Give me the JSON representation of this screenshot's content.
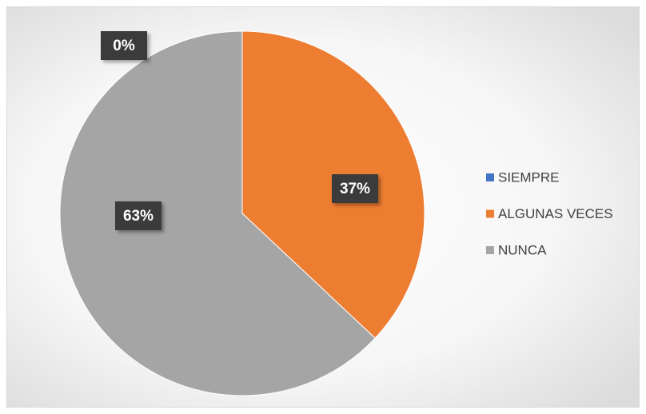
{
  "chart_data": {
    "type": "pie",
    "categories": [
      "SIEMPRE",
      "ALGUNAS VECES",
      "NUNCA"
    ],
    "values": [
      0,
      37,
      63
    ],
    "value_labels": [
      "0%",
      "37%",
      "63%"
    ],
    "colors": [
      "#4472c4",
      "#ed7d31",
      "#a5a5a5"
    ],
    "legend": "right"
  }
}
